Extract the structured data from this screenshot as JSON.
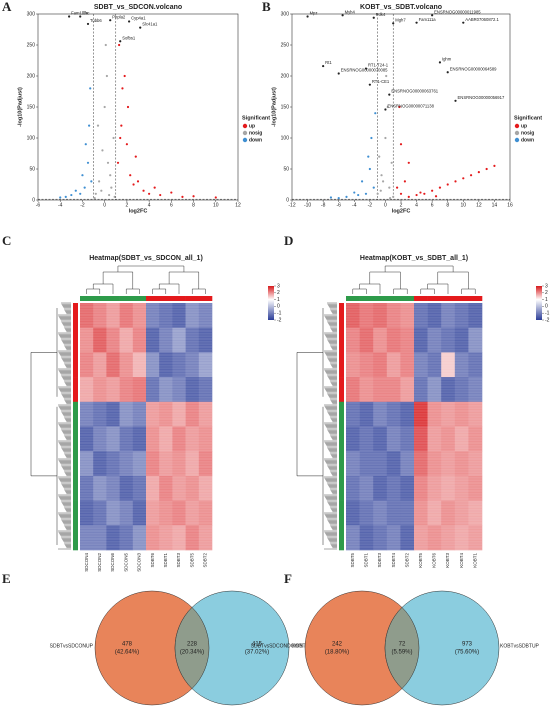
{
  "volcano_a": {
    "type": "scatter",
    "panel": "A",
    "title": "SDBT_vs_SDCON.volcano",
    "xlabel": "log2FC",
    "ylabel": "-log10(Padjust)",
    "xlim": [
      -6,
      12
    ],
    "xticks": [
      -6,
      -4,
      -2,
      0,
      2,
      4,
      6,
      8,
      10,
      12
    ],
    "ylim": [
      0,
      300
    ],
    "yticks": [
      0,
      50,
      100,
      150,
      200,
      250,
      300
    ],
    "threshold_x": [
      -1,
      1
    ],
    "threshold_y": 1.3,
    "legend_title": "Significant",
    "series": [
      {
        "name": "up",
        "color": "#e41a1c",
        "x": [
          1.2,
          1.5,
          1.8,
          2,
          2.3,
          2.6,
          3,
          3.5,
          4,
          4.5,
          5,
          6,
          7,
          8,
          10,
          1.3,
          1.6,
          2.1,
          2.8,
          1.4
        ],
        "y": [
          60,
          120,
          200,
          90,
          40,
          25,
          30,
          15,
          10,
          20,
          8,
          12,
          5,
          6,
          4,
          250,
          180,
          150,
          70,
          100
        ]
      },
      {
        "name": "nosig",
        "color": "#a6a6a6",
        "x": [
          -0.8,
          -0.5,
          -0.2,
          0,
          0.3,
          0.6,
          0.9,
          -0.6,
          0.2,
          0.5,
          -0.3,
          0.8,
          0.1,
          -0.9,
          0.4
        ],
        "y": [
          10,
          30,
          80,
          150,
          60,
          20,
          5,
          120,
          200,
          40,
          15,
          100,
          250,
          3,
          8
        ]
      },
      {
        "name": "down",
        "color": "#3f8fd2",
        "x": [
          -1.2,
          -1.5,
          -1.8,
          -2.2,
          -2.6,
          -3,
          -3.5,
          -4,
          -1.4,
          -1.7,
          -2,
          -1.3
        ],
        "y": [
          30,
          60,
          20,
          10,
          15,
          8,
          5,
          4,
          120,
          90,
          40,
          180
        ]
      }
    ],
    "annotations": [
      {
        "text": "Fam111a",
        "x": -3.2,
        "y": 296
      },
      {
        "text": "Tfrc",
        "x": -2.2,
        "y": 296
      },
      {
        "text": "Tubb6",
        "x": -1.5,
        "y": 284
      },
      {
        "text": "Pnpla2",
        "x": 0.5,
        "y": 290
      },
      {
        "text": "Cyp4a1",
        "x": 2.2,
        "y": 288
      },
      {
        "text": "Slc41a1",
        "x": 3.2,
        "y": 278
      },
      {
        "text": "Sofbs1",
        "x": 1.4,
        "y": 256
      }
    ]
  },
  "volcano_b": {
    "type": "scatter",
    "panel": "B",
    "title": "KOBT_vs_SDBT.volcano",
    "xlabel": "log2FC",
    "ylabel": "-log10(Padjust)",
    "xlim": [
      -12,
      16
    ],
    "xticks": [
      -12,
      -10,
      -8,
      -6,
      -4,
      -2,
      0,
      2,
      4,
      6,
      8,
      10,
      12,
      14,
      16
    ],
    "ylim": [
      0,
      300
    ],
    "yticks": [
      0,
      50,
      100,
      150,
      200,
      250,
      300
    ],
    "threshold_x": [
      -1,
      1
    ],
    "threshold_y": 1.3,
    "legend_title": "Significant",
    "series": [
      {
        "name": "up",
        "color": "#e41a1c",
        "x": [
          1.5,
          2,
          2.5,
          3,
          4,
          5,
          6,
          7,
          8,
          9,
          10,
          11,
          12,
          13,
          14,
          2,
          3,
          1.8,
          4.5,
          6.5
        ],
        "y": [
          20,
          10,
          30,
          5,
          8,
          10,
          15,
          20,
          25,
          30,
          35,
          40,
          45,
          50,
          55,
          90,
          60,
          150,
          12,
          6
        ]
      },
      {
        "name": "nosig",
        "color": "#a6a6a6",
        "x": [
          -1,
          -0.5,
          0,
          0.5,
          1,
          -0.8,
          0.3,
          -0.3,
          0.8,
          0.1,
          -0.6,
          0.6
        ],
        "y": [
          10,
          40,
          100,
          20,
          5,
          70,
          150,
          30,
          60,
          200,
          15,
          3
        ]
      },
      {
        "name": "down",
        "color": "#3f8fd2",
        "x": [
          -1.5,
          -2,
          -2.5,
          -3,
          -3.5,
          -4,
          -5,
          -6,
          -1.8,
          -2.2,
          -1.3,
          -7
        ],
        "y": [
          20,
          50,
          10,
          30,
          8,
          12,
          5,
          3,
          100,
          70,
          140,
          4
        ]
      }
    ],
    "annotations": [
      {
        "text": "Mpz",
        "x": -10,
        "y": 296
      },
      {
        "text": "Myh4",
        "x": -5.5,
        "y": 298
      },
      {
        "text": "Pdk4",
        "x": -1.5,
        "y": 294
      },
      {
        "text": "Mgh7",
        "x": 1,
        "y": 285
      },
      {
        "text": "Fam111a",
        "x": 4,
        "y": 286
      },
      {
        "text": "ENSRNOG00000011985",
        "x": 6,
        "y": 298
      },
      {
        "text": "AABR07060872.1",
        "x": 10,
        "y": 286
      },
      {
        "text": "Ighm",
        "x": 7,
        "y": 222
      },
      {
        "text": "ENSRNOG00000064589",
        "x": 8,
        "y": 206
      },
      {
        "text": "Rt1",
        "x": -8,
        "y": 216
      },
      {
        "text": "RT1-T24-1",
        "x": -2.5,
        "y": 212
      },
      {
        "text": "ENSRNOG00000070085",
        "x": -6,
        "y": 204
      },
      {
        "text": "RT1-CE1",
        "x": -2,
        "y": 186
      },
      {
        "text": "ENSRNOG00000063761",
        "x": 0.5,
        "y": 170
      },
      {
        "text": "ENSRNOG00000056917",
        "x": 9,
        "y": 160
      },
      {
        "text": "ENSRNOG00000071138",
        "x": 0,
        "y": 146
      }
    ]
  },
  "heatmap_c": {
    "type": "heatmap",
    "panel": "C",
    "title": "Heatmap(SDBT_vs_SDCON_all_1)",
    "columns": [
      "SDCON4",
      "SDCON2",
      "SDCON6",
      "SDCON5",
      "SDCON3",
      "SDBT6",
      "SDBT1",
      "SDBT3",
      "SDBT5",
      "SDBT2"
    ],
    "column_groups": [
      0,
      0,
      0,
      0,
      0,
      1,
      1,
      1,
      1,
      1
    ],
    "row_groups": [
      1,
      1,
      1,
      1,
      0,
      0,
      0,
      0,
      0,
      0
    ],
    "group_colors": [
      "#2e9b4a",
      "#e41a1c"
    ],
    "clim": [
      -2,
      3
    ],
    "colorbar_ticks": [
      3,
      2,
      1,
      0,
      -1,
      -2
    ],
    "matrix": [
      [
        1.2,
        1,
        0.8,
        1.1,
        0.9,
        -0.8,
        -0.9,
        -1,
        -0.7,
        -0.8
      ],
      [
        0.9,
        1.3,
        1,
        0.7,
        1,
        -1,
        -0.8,
        -0.6,
        -0.9,
        -1
      ],
      [
        1,
        0.8,
        1.2,
        0.9,
        0.6,
        -0.7,
        -1,
        -0.9,
        -0.8,
        -0.6
      ],
      [
        0.7,
        0.9,
        0.8,
        1,
        1.1,
        -0.9,
        -0.7,
        -0.8,
        -1,
        -0.9
      ],
      [
        -0.8,
        -0.9,
        -1,
        -0.7,
        -0.8,
        0.8,
        0.9,
        0.7,
        1,
        0.8
      ],
      [
        -1,
        -0.8,
        -0.7,
        -0.9,
        -1,
        0.9,
        0.7,
        1,
        0.8,
        0.9
      ],
      [
        -0.7,
        -1,
        -0.9,
        -0.8,
        -0.7,
        1,
        0.8,
        0.9,
        0.7,
        1
      ],
      [
        -0.9,
        -0.7,
        -0.8,
        -1,
        -0.9,
        0.7,
        1,
        0.8,
        0.9,
        0.7
      ],
      [
        -1,
        -0.9,
        -0.7,
        -0.8,
        -1,
        0.8,
        0.9,
        1,
        0.8,
        0.9
      ],
      [
        -0.8,
        -0.8,
        -1,
        -0.9,
        -0.7,
        0.9,
        0.8,
        0.7,
        1,
        0.8
      ]
    ]
  },
  "heatmap_d": {
    "type": "heatmap",
    "panel": "D",
    "title": "Heatmap(KOBT_vs_SDBT_all_1)",
    "columns": [
      "SDBT5",
      "SDBT1",
      "SDBT3",
      "SDBT4",
      "SDBT2",
      "KOBT5",
      "KOBT6",
      "KOBT3",
      "KOBT4",
      "KOBT1"
    ],
    "column_groups": [
      0,
      0,
      0,
      0,
      0,
      1,
      1,
      1,
      1,
      1
    ],
    "row_groups": [
      1,
      1,
      1,
      1,
      0,
      0,
      0,
      0,
      0,
      0
    ],
    "group_colors": [
      "#2e9b4a",
      "#e41a1c"
    ],
    "clim": [
      -2,
      3
    ],
    "colorbar_ticks": [
      3,
      2,
      1,
      0,
      -1,
      -2
    ],
    "matrix": [
      [
        1.3,
        1.1,
        1.2,
        1,
        0.9,
        -0.9,
        -1,
        -0.8,
        -0.9,
        -1
      ],
      [
        1,
        1.2,
        0.9,
        1.1,
        1,
        -1,
        -0.8,
        -0.9,
        -1,
        -0.7
      ],
      [
        0.9,
        1,
        1.1,
        0.8,
        1,
        -0.8,
        -0.9,
        0.4,
        -0.8,
        -0.9
      ],
      [
        1.1,
        0.9,
        1,
        1,
        0.8,
        -0.9,
        -0.7,
        -1,
        -0.9,
        -0.8
      ],
      [
        -0.9,
        -1,
        -0.8,
        -0.9,
        -1,
        1.6,
        0.9,
        0.8,
        0.9,
        0.8
      ],
      [
        -1,
        -0.9,
        -1,
        -0.8,
        -0.9,
        1.4,
        0.8,
        0.9,
        0.7,
        0.9
      ],
      [
        -0.8,
        -0.9,
        -0.9,
        -1,
        -0.8,
        1.2,
        0.9,
        0.8,
        0.9,
        0.8
      ],
      [
        -0.9,
        -0.8,
        -1,
        -0.9,
        -1,
        1,
        0.8,
        0.7,
        0.8,
        0.9
      ],
      [
        -1,
        -0.9,
        -0.8,
        -0.9,
        -0.9,
        0.9,
        0.7,
        0.9,
        0.8,
        0.7
      ],
      [
        -0.8,
        -1,
        -0.9,
        -0.8,
        -1,
        0.8,
        0.9,
        0.8,
        0.7,
        0.8
      ]
    ]
  },
  "venn_e": {
    "type": "venn",
    "panel": "E",
    "colors": [
      "#e8845a",
      "#7ec8dc"
    ],
    "left": {
      "name": "SDBTvsSDCONUP",
      "count": 478,
      "percent": "(42.64%)"
    },
    "overlap": {
      "count": 228,
      "percent": "(20.34%)"
    },
    "right": {
      "name": "KOBTvsSDBTDOWN",
      "count": 415,
      "percent": "(37.02%)"
    }
  },
  "venn_f": {
    "type": "venn",
    "panel": "F",
    "colors": [
      "#e8845a",
      "#7ec8dc"
    ],
    "left": {
      "name": "SDBTvsSDCONDOWN",
      "count": 242,
      "percent": "(18.80%)"
    },
    "overlap": {
      "count": 72,
      "percent": "(5.59%)"
    },
    "right": {
      "name": "KOBTvsSDBTUP",
      "count": 973,
      "percent": "(75.60%)"
    }
  }
}
